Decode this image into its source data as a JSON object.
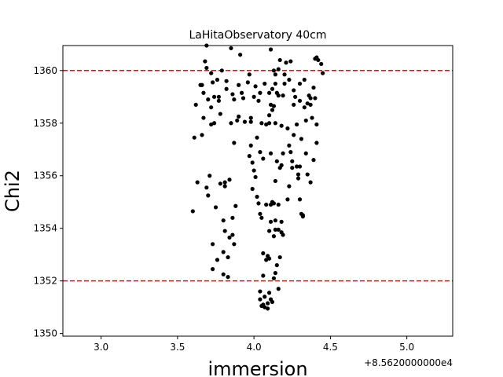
{
  "chart_data": {
    "type": "scatter",
    "title": "LaHitaObservatory 40cm",
    "xlabel": "immersion",
    "ylabel": "Chi2",
    "x_offset_label": "+8.5620000000e4",
    "xlim": [
      2.75,
      5.3
    ],
    "ylim": [
      1349.9,
      1360.95
    ],
    "x_ticks": [
      3.0,
      3.5,
      4.0,
      4.5,
      5.0
    ],
    "x_tick_labels": [
      "3.0",
      "3.5",
      "4.0",
      "4.5",
      "5.0"
    ],
    "y_ticks": [
      1350,
      1352,
      1354,
      1356,
      1358,
      1360
    ],
    "y_tick_labels": [
      "1350",
      "1352",
      "1354",
      "1356",
      "1358",
      "1360"
    ],
    "grid": false,
    "marker_color": "#000000",
    "hlines": [
      {
        "y": 1360.0,
        "color": "#ff0000",
        "style": "dashed"
      },
      {
        "y": 1352.0,
        "color": "#ff0000",
        "style": "dashed"
      }
    ],
    "points": [
      [
        3.6,
        1354.65
      ],
      [
        3.61,
        1357.45
      ],
      [
        3.62,
        1358.7
      ],
      [
        3.63,
        1355.75
      ],
      [
        3.65,
        1359.45
      ],
      [
        3.66,
        1359.45
      ],
      [
        3.66,
        1357.55
      ],
      [
        3.67,
        1359.15
      ],
      [
        3.67,
        1358.2
      ],
      [
        3.68,
        1360.35
      ],
      [
        3.69,
        1360.95
      ],
      [
        3.69,
        1360.1
      ],
      [
        3.69,
        1355.55
      ],
      [
        3.7,
        1355.25
      ],
      [
        3.7,
        1358.9
      ],
      [
        3.71,
        1356.0
      ],
      [
        3.72,
        1359.9
      ],
      [
        3.72,
        1358.6
      ],
      [
        3.72,
        1357.95
      ],
      [
        3.73,
        1359.55
      ],
      [
        3.73,
        1353.4
      ],
      [
        3.73,
        1352.45
      ],
      [
        3.74,
        1359.0
      ],
      [
        3.74,
        1358.0
      ],
      [
        3.75,
        1354.8
      ],
      [
        3.76,
        1352.8
      ],
      [
        3.76,
        1359.65
      ],
      [
        3.77,
        1359.0
      ],
      [
        3.77,
        1358.85
      ],
      [
        3.78,
        1355.7
      ],
      [
        3.78,
        1358.35
      ],
      [
        3.79,
        1360.0
      ],
      [
        3.8,
        1354.3
      ],
      [
        3.8,
        1353.1
      ],
      [
        3.8,
        1352.25
      ],
      [
        3.81,
        1355.6
      ],
      [
        3.81,
        1355.75
      ],
      [
        3.81,
        1353.9
      ],
      [
        3.82,
        1359.3
      ],
      [
        3.82,
        1359.6
      ],
      [
        3.83,
        1352.15
      ],
      [
        3.83,
        1352.9
      ],
      [
        3.84,
        1355.85
      ],
      [
        3.84,
        1353.65
      ],
      [
        3.85,
        1360.85
      ],
      [
        3.85,
        1358.0
      ],
      [
        3.86,
        1359.1
      ],
      [
        3.86,
        1354.4
      ],
      [
        3.86,
        1353.75
      ],
      [
        3.87,
        1358.9
      ],
      [
        3.87,
        1357.25
      ],
      [
        3.87,
        1353.4
      ],
      [
        3.88,
        1354.85
      ],
      [
        3.89,
        1358.1
      ],
      [
        3.9,
        1359.45
      ],
      [
        3.9,
        1358.25
      ],
      [
        3.91,
        1360.6
      ],
      [
        3.92,
        1359.15
      ],
      [
        3.93,
        1358.95
      ],
      [
        3.94,
        1358.05
      ],
      [
        3.96,
        1359.55
      ],
      [
        3.97,
        1359.85
      ],
      [
        3.97,
        1356.75
      ],
      [
        3.98,
        1357.15
      ],
      [
        3.98,
        1358.2
      ],
      [
        3.98,
        1358.05
      ],
      [
        3.99,
        1356.5
      ],
      [
        3.99,
        1355.5
      ],
      [
        4.0,
        1356.2
      ],
      [
        4.0,
        1359.0
      ],
      [
        4.01,
        1359.4
      ],
      [
        4.01,
        1355.95
      ],
      [
        4.02,
        1357.45
      ],
      [
        4.02,
        1355.2
      ],
      [
        4.03,
        1354.95
      ],
      [
        4.03,
        1358.85
      ],
      [
        4.04,
        1359.15
      ],
      [
        4.04,
        1356.9
      ],
      [
        4.04,
        1354.55
      ],
      [
        4.04,
        1351.3
      ],
      [
        4.04,
        1351.6
      ],
      [
        4.05,
        1351.05
      ],
      [
        4.05,
        1358.0
      ],
      [
        4.05,
        1354.4
      ],
      [
        4.06,
        1356.65
      ],
      [
        4.06,
        1353.05
      ],
      [
        4.06,
        1352.2
      ],
      [
        4.06,
        1351.1
      ],
      [
        4.07,
        1359.5
      ],
      [
        4.07,
        1351.0
      ],
      [
        4.07,
        1351.4
      ],
      [
        4.08,
        1357.95
      ],
      [
        4.08,
        1354.9
      ],
      [
        4.08,
        1352.8
      ],
      [
        4.09,
        1352.95
      ],
      [
        4.09,
        1351.15
      ],
      [
        4.09,
        1350.95
      ],
      [
        4.1,
        1359.15
      ],
      [
        4.1,
        1358.3
      ],
      [
        4.1,
        1358.0
      ],
      [
        4.1,
        1353.9
      ],
      [
        4.1,
        1352.85
      ],
      [
        4.1,
        1351.55
      ],
      [
        4.11,
        1360.8
      ],
      [
        4.11,
        1358.7
      ],
      [
        4.11,
        1356.85
      ],
      [
        4.11,
        1354.9
      ],
      [
        4.11,
        1354.25
      ],
      [
        4.11,
        1351.3
      ],
      [
        4.12,
        1359.3
      ],
      [
        4.12,
        1358.5
      ],
      [
        4.12,
        1355.0
      ],
      [
        4.12,
        1351.2
      ],
      [
        4.13,
        1360.0
      ],
      [
        4.13,
        1358.65
      ],
      [
        4.13,
        1354.95
      ],
      [
        4.13,
        1353.7
      ],
      [
        4.13,
        1352.1
      ],
      [
        4.14,
        1359.85
      ],
      [
        4.14,
        1359.5
      ],
      [
        4.14,
        1358.0
      ],
      [
        4.14,
        1355.8
      ],
      [
        4.14,
        1354.3
      ],
      [
        4.14,
        1353.95
      ],
      [
        4.14,
        1352.3
      ],
      [
        4.15,
        1359.15
      ],
      [
        4.15,
        1356.55
      ],
      [
        4.15,
        1352.6
      ],
      [
        4.16,
        1360.05
      ],
      [
        4.16,
        1359.05
      ],
      [
        4.16,
        1354.9
      ],
      [
        4.16,
        1353.95
      ],
      [
        4.16,
        1351.7
      ],
      [
        4.17,
        1360.4
      ],
      [
        4.17,
        1356.3
      ],
      [
        4.17,
        1352.9
      ],
      [
        4.18,
        1357.9
      ],
      [
        4.18,
        1356.4
      ],
      [
        4.18,
        1354.25
      ],
      [
        4.18,
        1353.85
      ],
      [
        4.19,
        1359.05
      ],
      [
        4.19,
        1356.85
      ],
      [
        4.19,
        1353.75
      ],
      [
        4.2,
        1359.85
      ],
      [
        4.2,
        1359.5
      ],
      [
        4.21,
        1360.3
      ],
      [
        4.22,
        1357.8
      ],
      [
        4.22,
        1355.1
      ],
      [
        4.23,
        1359.65
      ],
      [
        4.23,
        1357.15
      ],
      [
        4.23,
        1355.6
      ],
      [
        4.24,
        1360.35
      ],
      [
        4.24,
        1356.9
      ],
      [
        4.25,
        1356.55
      ],
      [
        4.25,
        1356.3
      ],
      [
        4.26,
        1359.25
      ],
      [
        4.26,
        1358.7
      ],
      [
        4.26,
        1357.55
      ],
      [
        4.27,
        1359.0
      ],
      [
        4.28,
        1357.95
      ],
      [
        4.28,
        1356.35
      ],
      [
        4.29,
        1356.05
      ],
      [
        4.29,
        1355.9
      ],
      [
        4.3,
        1359.5
      ],
      [
        4.3,
        1358.85
      ],
      [
        4.3,
        1356.35
      ],
      [
        4.3,
        1355.1
      ],
      [
        4.31,
        1357.4
      ],
      [
        4.31,
        1354.55
      ],
      [
        4.32,
        1354.5
      ],
      [
        4.32,
        1354.45
      ],
      [
        4.33,
        1359.65
      ],
      [
        4.33,
        1358.6
      ],
      [
        4.34,
        1358.1
      ],
      [
        4.34,
        1356.85
      ],
      [
        4.35,
        1356.05
      ],
      [
        4.35,
        1358.75
      ],
      [
        4.36,
        1359.05
      ],
      [
        4.37,
        1358.95
      ],
      [
        4.37,
        1358.7
      ],
      [
        4.37,
        1355.75
      ],
      [
        4.38,
        1358.2
      ],
      [
        4.39,
        1359.35
      ],
      [
        4.39,
        1356.6
      ],
      [
        4.4,
        1360.45
      ],
      [
        4.4,
        1358.95
      ],
      [
        4.41,
        1360.5
      ],
      [
        4.41,
        1357.25
      ],
      [
        4.41,
        1357.95
      ],
      [
        4.42,
        1360.4
      ],
      [
        4.44,
        1360.25
      ],
      [
        4.45,
        1359.9
      ]
    ]
  }
}
